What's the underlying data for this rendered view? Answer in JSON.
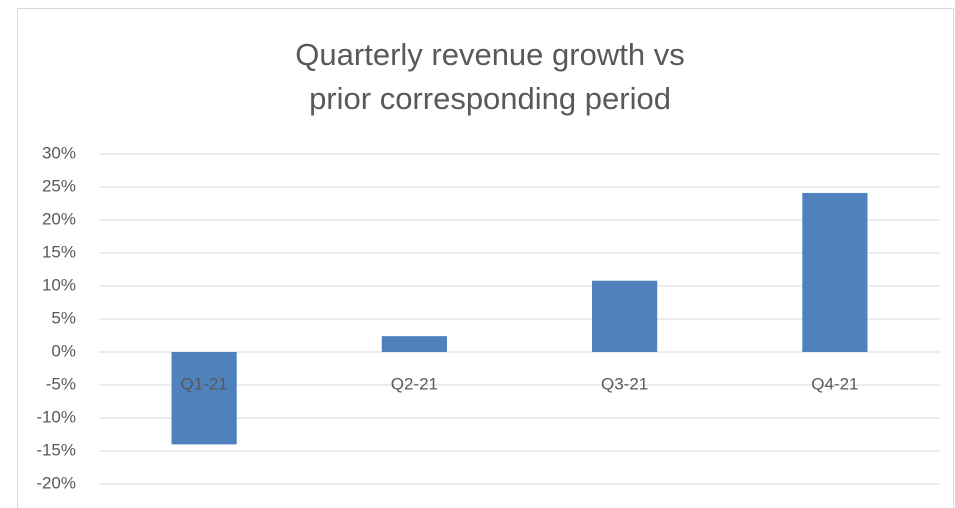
{
  "chart_data": {
    "type": "bar",
    "title": [
      "Quarterly revenue growth vs",
      "prior corresponding period"
    ],
    "categories": [
      "Q1-21",
      "Q2-21",
      "Q3-21",
      "Q4-21"
    ],
    "values": [
      -14,
      2.4,
      10.8,
      24.1
    ],
    "color": "#4f81bd",
    "ylim": [
      -20,
      30
    ],
    "yticks": [
      {
        "value": -20,
        "label": "-20%"
      },
      {
        "value": -15,
        "label": "-15%"
      },
      {
        "value": -10,
        "label": "-10%"
      },
      {
        "value": -5,
        "label": "-5%"
      },
      {
        "value": 0,
        "label": "0%"
      },
      {
        "value": 5,
        "label": "5%"
      },
      {
        "value": 10,
        "label": "10%"
      },
      {
        "value": 15,
        "label": "15%"
      },
      {
        "value": 20,
        "label": "20%"
      },
      {
        "value": 25,
        "label": "25%"
      },
      {
        "value": 30,
        "label": "30%"
      }
    ],
    "grid": true
  }
}
